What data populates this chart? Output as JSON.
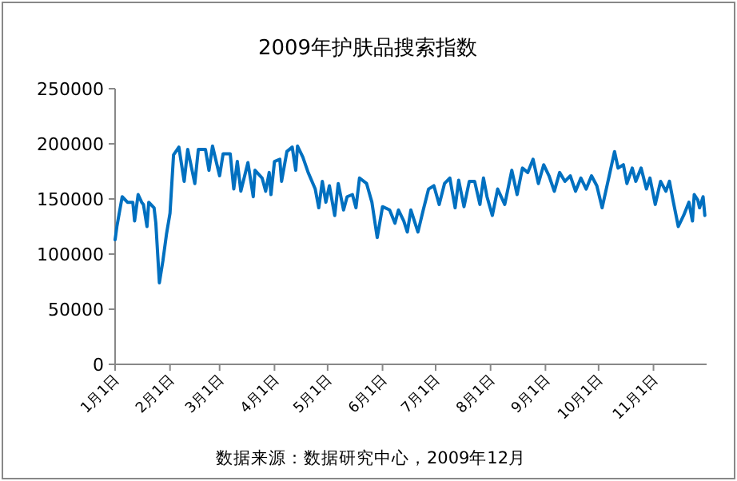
{
  "chart_data": {
    "type": "line",
    "title": "2009年护肤品搜索指数",
    "annotations": [
      "数据来源：数据研究中心，2009年12月"
    ],
    "xlim": [
      "--01-01",
      "--12-01"
    ],
    "xticks": [
      {
        "value": "--01-01",
        "label": "1月1日"
      },
      {
        "value": "--02-01",
        "label": "2月1日"
      },
      {
        "value": "--03-01",
        "label": "3月1日"
      },
      {
        "value": "--04-01",
        "label": "4月1日"
      },
      {
        "value": "--05-01",
        "label": "5月1日"
      },
      {
        "value": "--06-01",
        "label": "6月1日"
      },
      {
        "value": "--07-01",
        "label": "7月1日"
      },
      {
        "value": "--08-01",
        "label": "8月1日"
      },
      {
        "value": "--09-01",
        "label": "9月1日"
      },
      {
        "value": "--10-01",
        "label": "10月1日"
      },
      {
        "value": "--11-01",
        "label": "11月1日"
      }
    ],
    "ylim": [
      0,
      250000
    ],
    "yticks": [
      0,
      50000,
      100000,
      150000,
      200000,
      250000
    ],
    "grid": false,
    "marker": "none",
    "line_style": "solid",
    "series": [
      {
        "color": "#0070c0",
        "x": [
          "--01-01",
          "--01-02",
          "--01-05",
          "--01-08",
          "--01-11",
          "--01-12",
          "--01-14",
          "--01-16",
          "--01-17",
          "--01-19",
          "--01-20",
          "--01-23",
          "--01-24",
          "--01-26",
          "--01-28",
          "--01-30",
          "--02-01",
          "--02-03",
          "--02-06",
          "--02-09",
          "--02-11",
          "--02-15",
          "--02-17",
          "--02-21",
          "--02-23",
          "--02-25",
          "--03-01",
          "--03-03",
          "--03-07",
          "--03-09",
          "--03-11",
          "--03-13",
          "--03-17",
          "--03-20",
          "--03-21",
          "--03-25",
          "--03-27",
          "--03-29",
          "--03-30",
          "--04-01",
          "--04-04",
          "--04-05",
          "--04-08",
          "--04-11",
          "--04-13",
          "--04-14",
          "--04-17",
          "--04-20",
          "--04-24",
          "--04-26",
          "--04-28",
          "--04-30",
          "--05-02",
          "--05-05",
          "--05-07",
          "--05-10",
          "--05-12",
          "--05-15",
          "--05-17",
          "--05-19",
          "--05-23",
          "--05-26",
          "--05-29",
          "--06-01",
          "--06-05",
          "--06-08",
          "--06-10",
          "--06-13",
          "--06-15",
          "--06-17",
          "--06-21",
          "--06-24",
          "--06-27",
          "--06-30",
          "--07-03",
          "--07-06",
          "--07-09",
          "--07-12",
          "--07-14",
          "--07-17",
          "--07-20",
          "--07-23",
          "--07-26",
          "--07-28",
          "--07-30",
          "--08-02",
          "--08-05",
          "--08-09",
          "--08-13",
          "--08-16",
          "--08-19",
          "--08-22",
          "--08-25",
          "--08-28",
          "--08-31",
          "--09-03",
          "--09-06",
          "--09-09",
          "--09-12",
          "--09-15",
          "--09-18",
          "--09-21",
          "--09-24",
          "--09-27",
          "--09-30",
          "--10-03",
          "--10-07",
          "--10-10",
          "--10-12",
          "--10-15",
          "--10-17",
          "--10-20",
          "--10-22",
          "--10-25",
          "--10-28",
          "--10-30",
          "--11-02",
          "--11-05",
          "--11-08",
          "--11-10",
          "--11-12",
          "--11-15",
          "--11-18",
          "--11-21",
          "--11-23",
          "--11-24",
          "--11-26",
          "--11-27",
          "--11-29",
          "--11-30"
        ],
        "values": [
          113000,
          125000,
          152000,
          147000,
          147000,
          130000,
          154000,
          147000,
          145000,
          125000,
          147000,
          142000,
          128000,
          74000,
          94000,
          118000,
          137000,
          190000,
          197000,
          166000,
          195000,
          164000,
          195000,
          195000,
          176000,
          198000,
          171000,
          191000,
          191000,
          159000,
          184000,
          157000,
          183000,
          152000,
          176000,
          169000,
          157000,
          174000,
          154000,
          184000,
          186000,
          166000,
          193000,
          197000,
          176000,
          198000,
          188000,
          174000,
          159000,
          142000,
          166000,
          147000,
          162000,
          135000,
          164000,
          140000,
          152000,
          154000,
          142000,
          169000,
          164000,
          147000,
          115000,
          143000,
          140000,
          128000,
          140000,
          130000,
          120000,
          140000,
          120000,
          140000,
          159000,
          162000,
          145000,
          164000,
          169000,
          142000,
          167000,
          143000,
          166000,
          166000,
          145000,
          169000,
          152000,
          135000,
          159000,
          145000,
          176000,
          154000,
          178000,
          174000,
          186000,
          164000,
          181000,
          171000,
          157000,
          174000,
          166000,
          171000,
          157000,
          169000,
          159000,
          171000,
          162000,
          142000,
          171000,
          193000,
          178000,
          181000,
          164000,
          178000,
          166000,
          178000,
          159000,
          169000,
          145000,
          166000,
          157000,
          166000,
          149000,
          125000,
          135000,
          147000,
          130000,
          154000,
          149000,
          142000,
          152000,
          135000
        ]
      }
    ]
  }
}
